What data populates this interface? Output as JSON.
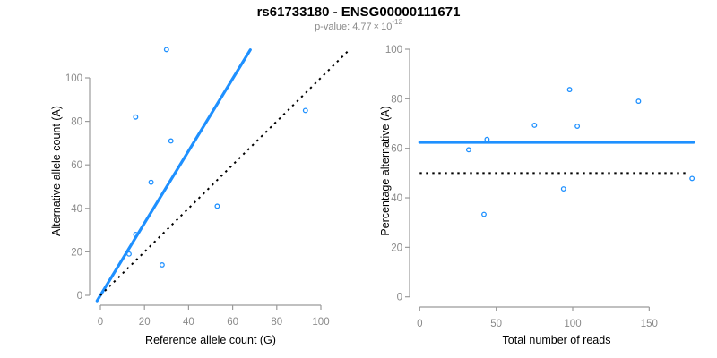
{
  "header": {
    "title": "rs61733180 - ENSG00000111671",
    "subtitle_prefix": "p-value: 4.77",
    "subtitle_times": "×",
    "subtitle_base": "10",
    "subtitle_exponent": "-12"
  },
  "colors": {
    "accent_blue": "#1E90FF",
    "axis_stroke": "#9b9b9b",
    "tick_label_gray": "#8a8a8a",
    "axis_title_black": "#000000",
    "dotted_line_black": "#000000",
    "background": "#ffffff"
  },
  "chart_data": [
    {
      "type": "scatter",
      "panel": "left",
      "xlabel": "Reference allele count (G)",
      "ylabel": "Alternative allele count (A)",
      "xlim": [
        0,
        100
      ],
      "ylim": [
        0,
        100
      ],
      "xticks": [
        0,
        20,
        40,
        60,
        80,
        100
      ],
      "yticks": [
        0,
        20,
        40,
        60,
        80,
        100
      ],
      "grid": false,
      "legend": null,
      "points": [
        [
          13,
          19
        ],
        [
          16,
          28
        ],
        [
          23,
          52
        ],
        [
          16,
          82
        ],
        [
          32,
          71
        ],
        [
          30,
          113
        ],
        [
          93,
          85
        ],
        [
          53,
          41
        ],
        [
          28,
          14
        ]
      ],
      "lines": [
        {
          "name": "fitted-ratio-line",
          "style": "solid",
          "color": "#1E90FF",
          "x1": -1.5,
          "y1": -2.5,
          "x2": 68,
          "y2": 112.9
        },
        {
          "name": "identity-line",
          "style": "dotted",
          "color": "#000000",
          "x1": 0,
          "y1": 0,
          "x2": 113,
          "y2": 113
        }
      ]
    },
    {
      "type": "scatter",
      "panel": "right",
      "xlabel": "Total number of reads",
      "ylabel": "Percentage alternative (A)",
      "xlim": [
        0,
        150
      ],
      "ylim": [
        0,
        100
      ],
      "xticks": [
        0,
        50,
        100,
        150
      ],
      "yticks": [
        0,
        20,
        40,
        60,
        80,
        100
      ],
      "grid": false,
      "legend": null,
      "points": [
        [
          32,
          59.4
        ],
        [
          44,
          63.6
        ],
        [
          75,
          69.3
        ],
        [
          98,
          83.7
        ],
        [
          103,
          68.9
        ],
        [
          143,
          79.0
        ],
        [
          178,
          47.8
        ],
        [
          94,
          43.6
        ],
        [
          42,
          33.3
        ]
      ],
      "lines": [
        {
          "name": "mean-percentage-line",
          "style": "solid",
          "color": "#1E90FF",
          "x1": 0,
          "y1": 62.4,
          "x2": 179,
          "y2": 62.4
        },
        {
          "name": "fifty-percent-line",
          "style": "dotted",
          "color": "#000000",
          "x1": 0,
          "y1": 50,
          "x2": 176,
          "y2": 50
        }
      ]
    }
  ]
}
